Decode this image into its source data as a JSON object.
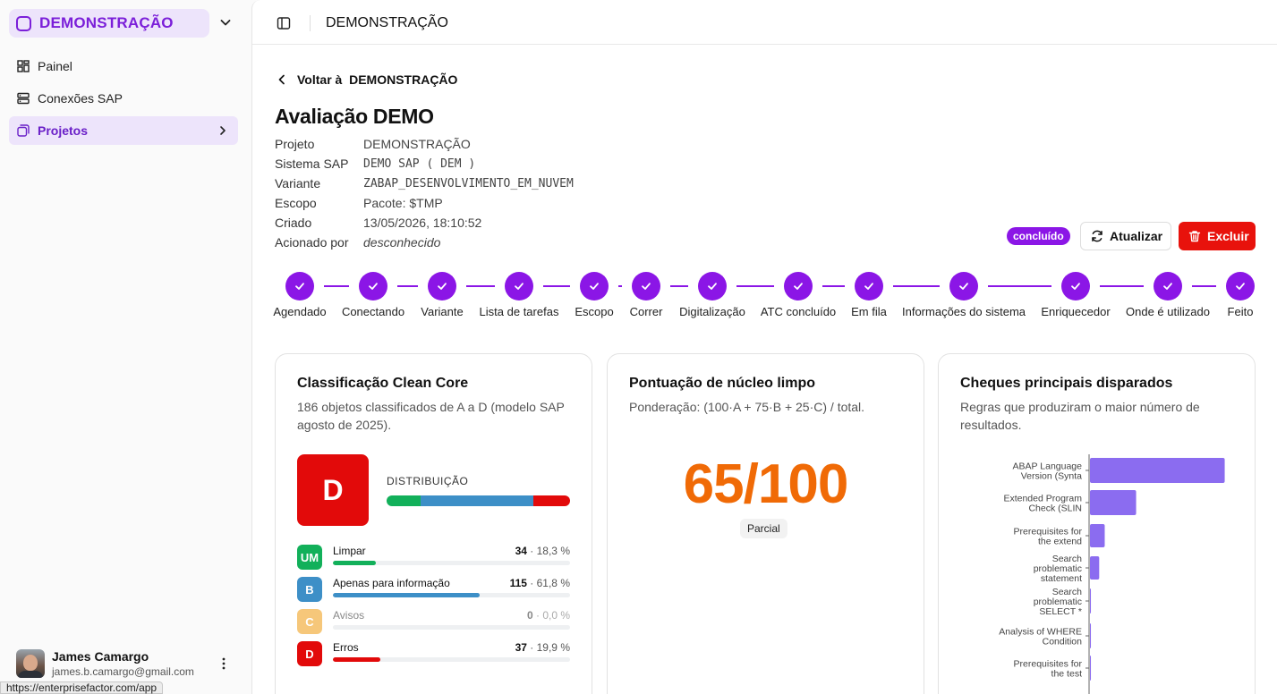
{
  "sidebar": {
    "org_name": "DEMONSTRAÇÃO",
    "items": [
      {
        "label": "Painel",
        "icon": "dashboard-icon"
      },
      {
        "label": "Conexões SAP",
        "icon": "server-icon"
      },
      {
        "label": "Projetos",
        "icon": "projects-icon",
        "active": true
      }
    ],
    "user": {
      "name": "James Camargo",
      "email": "james.b.camargo@gmail.com"
    },
    "status_url": "https://enterprisefactor.com/app"
  },
  "header": {
    "title": "DEMONSTRAÇÃO"
  },
  "back_link": "Voltar à  DEMONSTRAÇÃO",
  "page_title": "Avaliação DEMO",
  "meta": [
    {
      "key": "Projeto",
      "value": "DEMONSTRAÇÃO"
    },
    {
      "key": "Sistema SAP",
      "value": "DEMO SAP ( DEM )"
    },
    {
      "key": "Variante",
      "value": "ZABAP_DESENVOLVIMENTO_EM_NUVEM"
    },
    {
      "key": "Escopo",
      "value": "Pacote: $TMP"
    },
    {
      "key": "Criado",
      "value": "13/05/2026, 18:10:52"
    },
    {
      "key": "Acionado por",
      "value": "desconhecido"
    }
  ],
  "status_badge": "concluído",
  "actions": {
    "refresh": "Atualizar",
    "delete": "Excluir"
  },
  "colors": {
    "accent": "#8b16e6",
    "danger": "#e8120c",
    "score": "#f06a06"
  },
  "steps": [
    "Agendado",
    "Conectando",
    "Variante",
    "Lista de tarefas",
    "Escopo",
    "Correr",
    "Digitalização",
    "ATC concluído",
    "Em fila",
    "Informações do sistema",
    "Enriquecedor",
    "Onde é utilizado",
    "Feito"
  ],
  "classification": {
    "title": "Classificação Clean Core",
    "subtitle": "186 objetos classificados de A a D (modelo SAP agosto de 2025).",
    "grade": "D",
    "dist_label": "DISTRIBUIÇÃO",
    "rows": [
      {
        "chip": "UM",
        "name": "Limpar",
        "count": "34",
        "pct": "· 18,3 %",
        "fraction": 0.183,
        "color": "#12b05a"
      },
      {
        "chip": "B",
        "name": "Apenas para informação",
        "count": "115",
        "pct": "· 61,8 %",
        "fraction": 0.618,
        "color": "#3d8fc7"
      },
      {
        "chip": "C",
        "name": "Avisos",
        "count": "0",
        "pct": "· 0,0 %",
        "fraction": 0.0,
        "color": "#f6c77a"
      },
      {
        "chip": "D",
        "name": "Erros",
        "count": "37",
        "pct": "· 19,9 %",
        "fraction": 0.199,
        "color": "#e20a0a"
      }
    ]
  },
  "score": {
    "title": "Pontuação de núcleo limpo",
    "subtitle": "Ponderação: (100·A + 75·B + 25·C) / total.",
    "value": "65/100",
    "label": "Parcial"
  },
  "checks": {
    "title": "Cheques principais disparados",
    "subtitle": "Regras que produziram o maior número de resultados."
  },
  "chart_data": {
    "type": "bar",
    "orientation": "horizontal",
    "categories": [
      [
        "ABAP Language",
        "Version (Synta"
      ],
      [
        "Extended Program",
        "Check (SLIN"
      ],
      [
        "Prerequisites for",
        "the extend"
      ],
      [
        "Search",
        "problematic",
        "statement"
      ],
      [
        "Search",
        "problematic",
        "SELECT *"
      ],
      [
        "Analysis of WHERE",
        "Condition"
      ],
      [
        "Prerequisites for",
        "the test"
      ]
    ],
    "values": [
      73,
      25,
      8,
      5,
      0.5,
      0.5,
      0.5
    ],
    "color": "#8b6cf0"
  }
}
